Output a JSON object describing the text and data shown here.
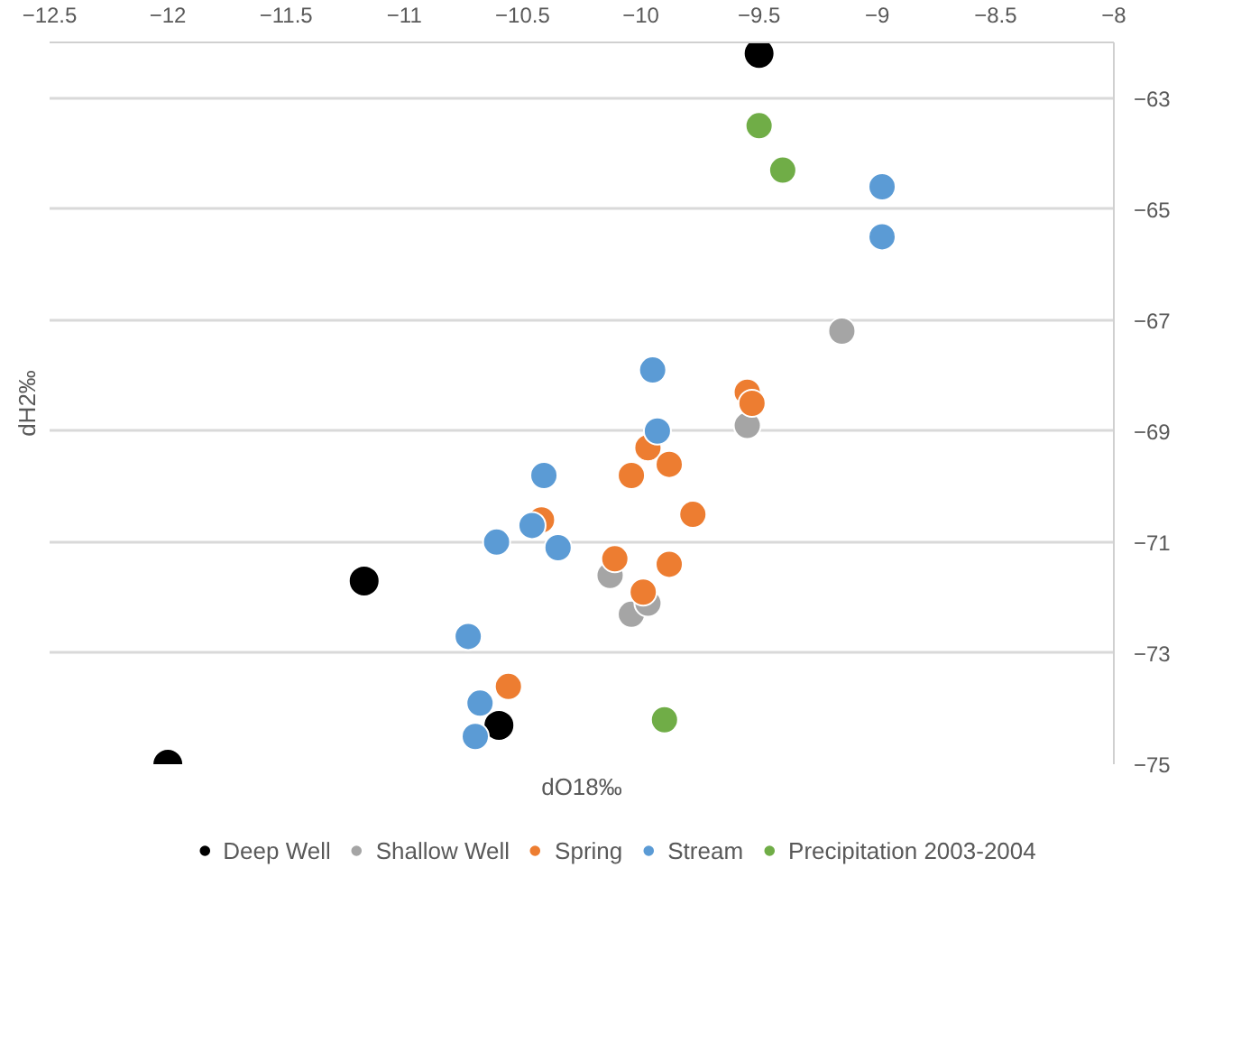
{
  "chart_data": {
    "type": "scatter",
    "xlabel": "dO18‰",
    "ylabel": "dH2‰",
    "xlim": [
      -12.5,
      -8
    ],
    "xticks": [
      -12.5,
      -12,
      -11.5,
      -11,
      -10.5,
      -10,
      -9.5,
      -9,
      -8.5,
      -8
    ],
    "ylim": [
      -75,
      -62
    ],
    "yticks": [
      -75,
      -73,
      -71,
      -69,
      -67,
      -65,
      -63
    ],
    "grid": "y",
    "legend": "bottom",
    "marker": "circle",
    "series": [
      {
        "name": "Deep Well",
        "color": "#000000",
        "x": [
          -9.5,
          -12.0,
          -11.17,
          -10.6
        ],
        "values": [
          -62.2,
          -75.0,
          -71.7,
          -74.3
        ]
      },
      {
        "name": "Shallow Well",
        "color": "#a5a5a5",
        "x": [
          -9.15,
          -9.55,
          -10.13,
          -10.04,
          -9.97
        ],
        "values": [
          -67.2,
          -68.9,
          -71.6,
          -72.3,
          -72.1
        ]
      },
      {
        "name": "Spring",
        "color": "#ed7d31",
        "x": [
          -9.55,
          -9.53,
          -9.97,
          -9.88,
          -10.04,
          -9.78,
          -10.42,
          -10.11,
          -9.88,
          -9.99,
          -10.56
        ],
        "values": [
          -68.3,
          -68.5,
          -69.3,
          -69.6,
          -69.8,
          -70.5,
          -70.6,
          -71.3,
          -71.4,
          -71.9,
          -73.6
        ]
      },
      {
        "name": "Stream",
        "color": "#5b9bd5",
        "x": [
          -8.98,
          -8.98,
          -9.95,
          -9.93,
          -10.41,
          -10.46,
          -10.61,
          -10.35,
          -10.73,
          -10.68,
          -10.7
        ],
        "values": [
          -64.6,
          -65.5,
          -67.9,
          -69.0,
          -69.8,
          -70.7,
          -71.0,
          -71.1,
          -72.7,
          -73.9,
          -74.5
        ]
      },
      {
        "name": "Precipitation 2003-2004",
        "color": "#70ad47",
        "x": [
          -9.5,
          -9.4,
          -9.9
        ],
        "values": [
          -63.5,
          -64.3,
          -74.2
        ]
      }
    ]
  }
}
